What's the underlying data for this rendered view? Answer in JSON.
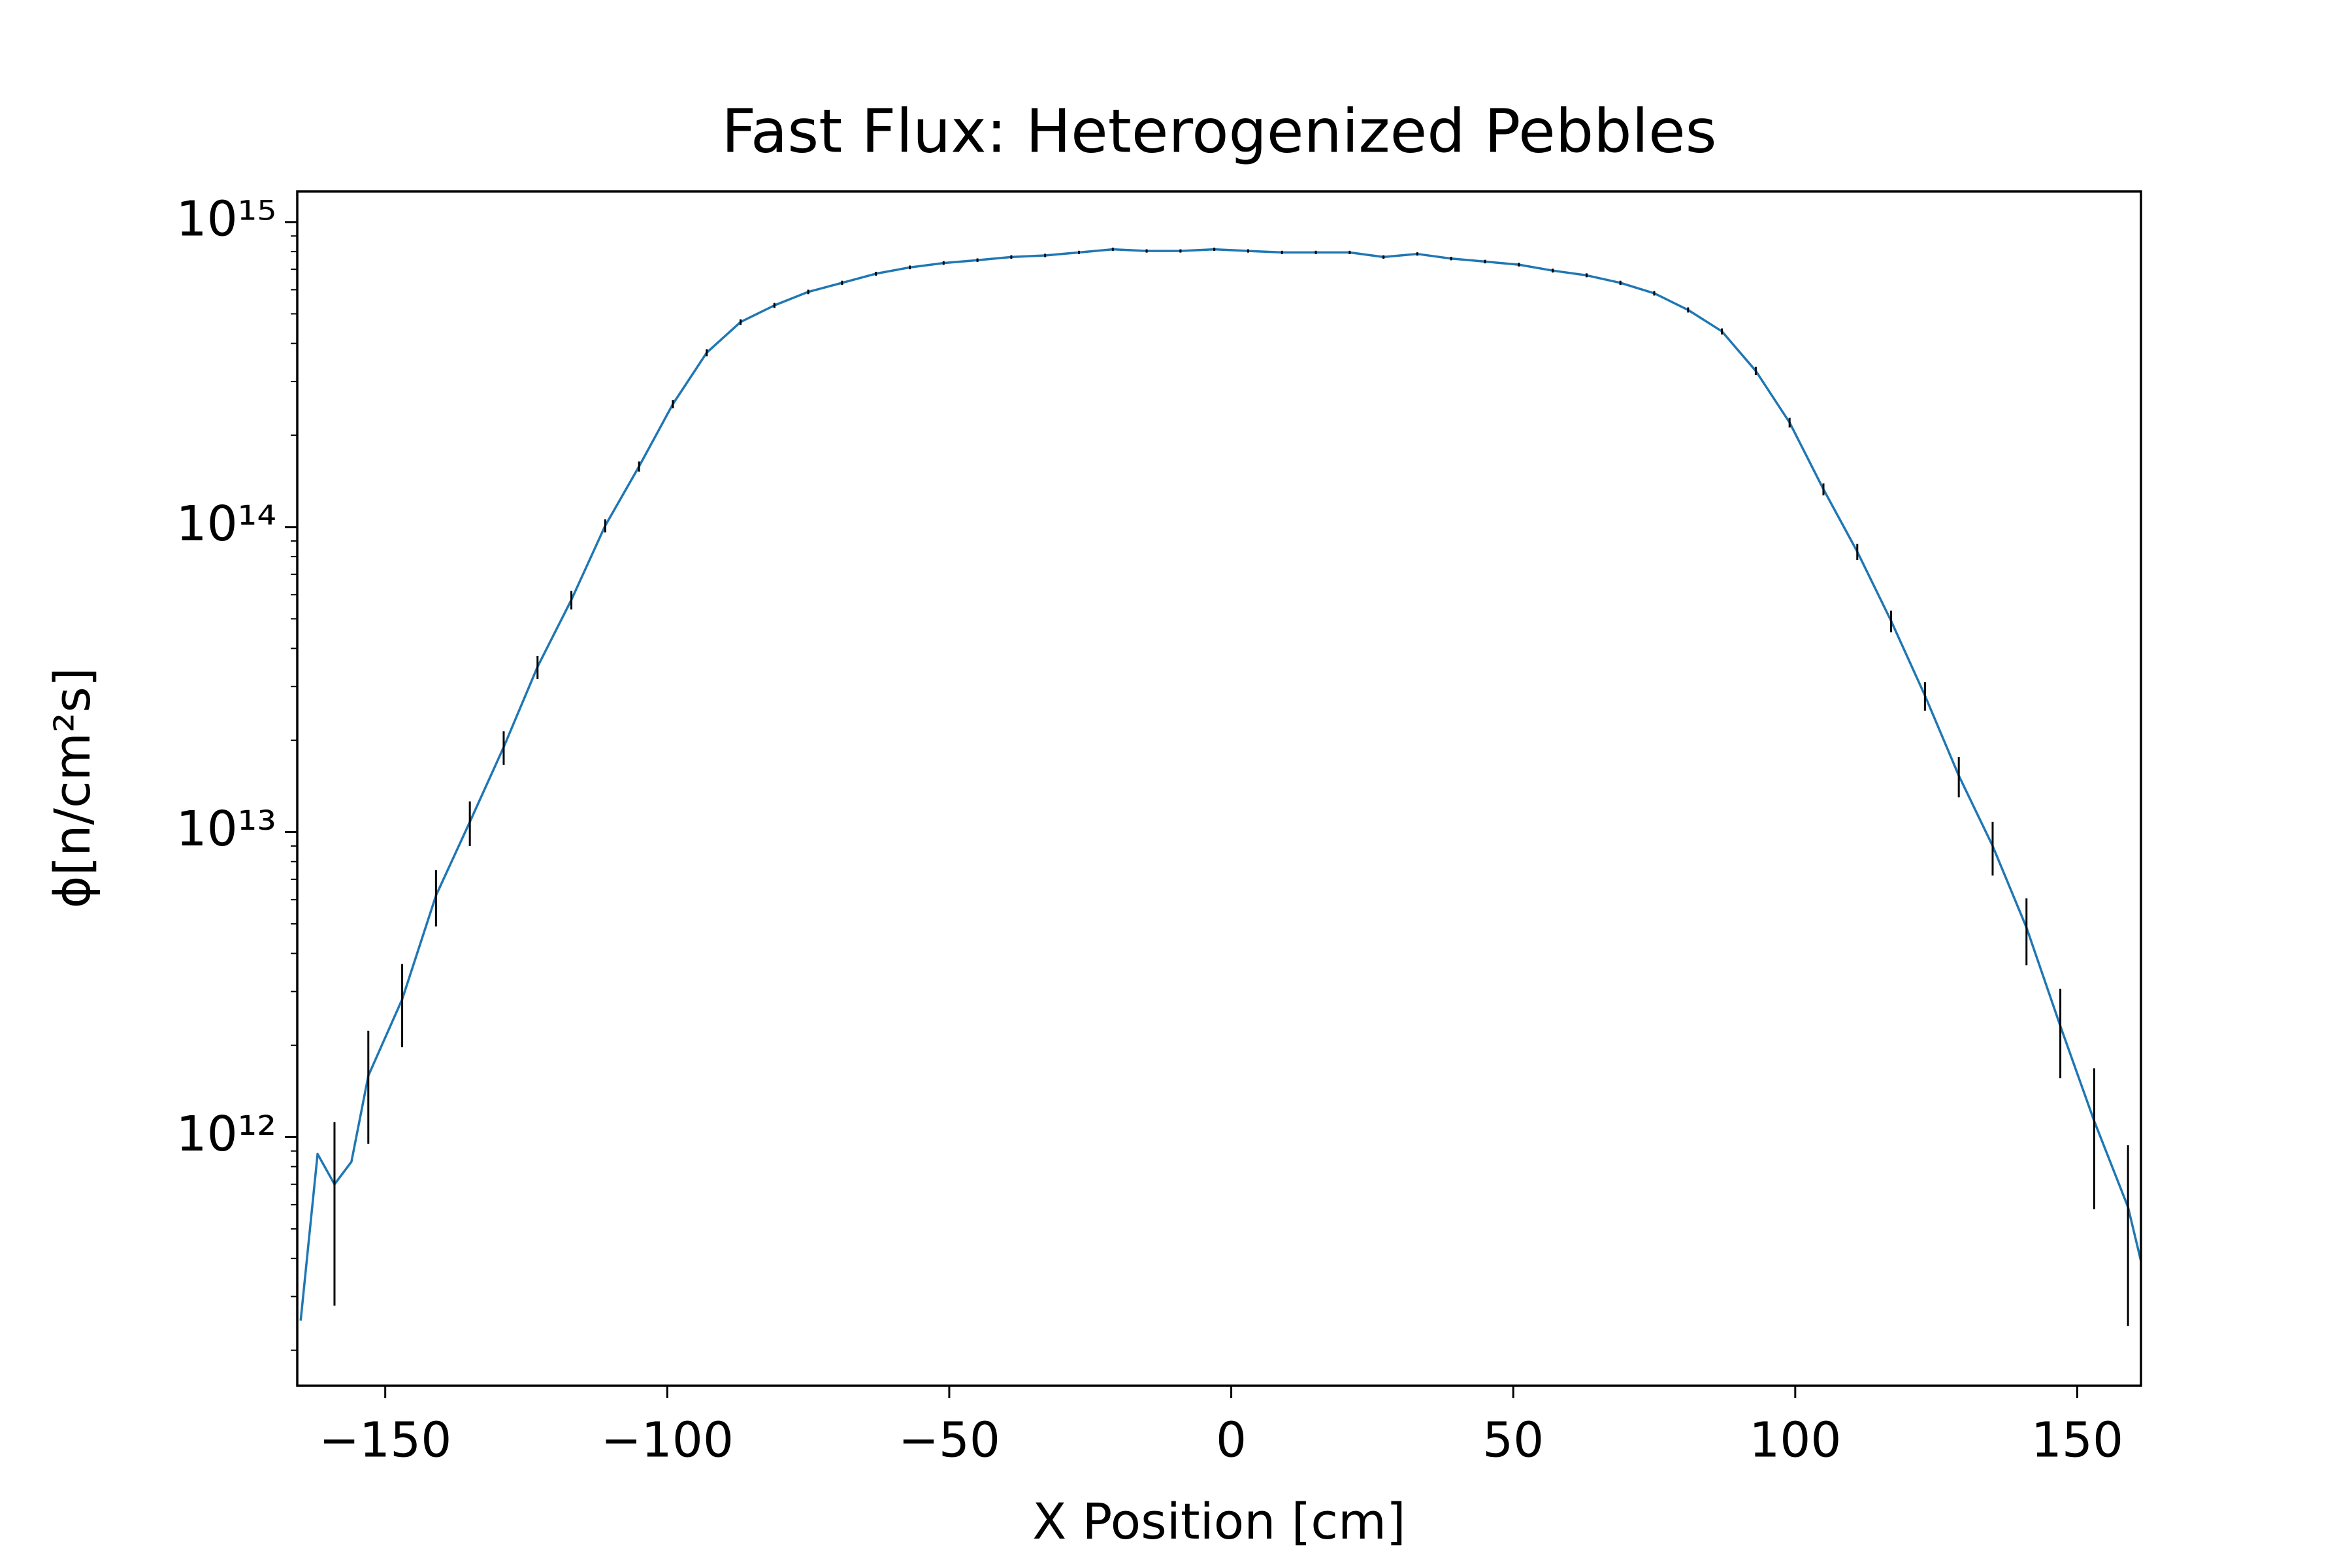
{
  "chart_data": {
    "type": "line",
    "title": "Fast Flux: Heterogenized Pebbles",
    "xlabel": "X Position [cm]",
    "ylabel": "ϕ[n/cm²s]",
    "log_y": true,
    "xlim": [
      -165.6,
      161.3
    ],
    "ylim": [
      153000000000.0,
      1260000000000000.0
    ],
    "xticks": [
      {
        "value": -150,
        "label": "−150"
      },
      {
        "value": -100,
        "label": "−100"
      },
      {
        "value": -50,
        "label": "−50"
      },
      0,
      50,
      100,
      150
    ],
    "yticks": [
      {
        "value": 1000000000000.0,
        "label": "10¹²"
      },
      {
        "value": 10000000000000.0,
        "label": "10¹³"
      },
      {
        "value": 100000000000000.0,
        "label": "10¹⁴"
      },
      {
        "value": 1000000000000000.0,
        "label": "10¹⁵"
      }
    ],
    "yminorticks": [
      200000000000.0,
      300000000000.0,
      400000000000.0,
      500000000000.0,
      600000000000.0,
      700000000000.0,
      800000000000.0,
      900000000000.0,
      2000000000000.0,
      3000000000000.0,
      4000000000000.0,
      5000000000000.0,
      6000000000000.0,
      7000000000000.0,
      8000000000000.0,
      9000000000000.0,
      20000000000000.0,
      30000000000000.0,
      40000000000000.0,
      50000000000000.0,
      60000000000000.0,
      70000000000000.0,
      80000000000000.0,
      90000000000000.0,
      200000000000000.0,
      300000000000000.0,
      400000000000000.0,
      500000000000000.0,
      600000000000000.0,
      700000000000000.0,
      800000000000000.0,
      900000000000000.0
    ],
    "error_color": "#000000",
    "x": [
      -165,
      -162,
      -159,
      -156,
      -153,
      -147,
      -141,
      -135,
      -129,
      -123,
      -117,
      -111,
      -105,
      -99,
      -93,
      -87,
      -81,
      -75,
      -69,
      -63,
      -57,
      -51,
      -45,
      -39,
      -33,
      -27,
      -21,
      -15,
      -9,
      -3,
      3,
      9,
      15,
      21,
      27,
      33,
      39,
      45,
      51,
      57,
      63,
      69,
      75,
      81,
      87,
      93,
      99,
      105,
      111,
      117,
      123,
      129,
      135,
      141,
      147,
      153,
      159,
      163,
      163.1
    ],
    "series": [
      {
        "color": "#1f77b4",
        "values": [
          250000000000.0,
          880000000000.0,
          700000000000.0,
          830000000000.0,
          1590000000000.0,
          2830000000000.0,
          6200000000000.0,
          10800000000000.0,
          19000000000000.0,
          34800000000000.0,
          57700000000000.0,
          101000000000000.0,
          158000000000000.0,
          253000000000000.0,
          373000000000000.0,
          470000000000000.0,
          533000000000000.0,
          590000000000000.0,
          632000000000000.0,
          677000000000000.0,
          710000000000000.0,
          734000000000000.0,
          750000000000000.0,
          768000000000000.0,
          777000000000000.0,
          795000000000000.0,
          814000000000000.0,
          804000000000000.0,
          804000000000000.0,
          814000000000000.0,
          804000000000000.0,
          795000000000000.0,
          795000000000000.0,
          795000000000000.0,
          768000000000000.0,
          786000000000000.0,
          759000000000000.0,
          742000000000000.0,
          725000000000000.0,
          693000000000000.0,
          669000000000000.0,
          632000000000000.0,
          584000000000000.0,
          515000000000000.0,
          438000000000000.0,
          325000000000000.0,
          220000000000000.0,
          133000000000000.0,
          83000000000000.0,
          49200000000000.0,
          28000000000000.0,
          15300000000000.0,
          9000000000000.0,
          4860000000000.0,
          2310000000000.0,
          1130000000000.0,
          590000000000.0,
          290000000000.0,
          100000000000.0
        ],
        "errors": [
          null,
          null,
          420000000000.0,
          null,
          640000000000.0,
          860000000000.0,
          1300000000000.0,
          1800000000000.0,
          2400000000000.0,
          3000000000000.0,
          4000000000000.0,
          5000000000000.0,
          6000000000000.0,
          8000000000000.0,
          10000000000000.0,
          10000000000000.0,
          10000000000000.0,
          10000000000000.0,
          10000000000000.0,
          10000000000000.0,
          10000000000000.0,
          10000000000000.0,
          10000000000000.0,
          10000000000000.0,
          10000000000000.0,
          10000000000000.0,
          10000000000000.0,
          10000000000000.0,
          10000000000000.0,
          10000000000000.0,
          10000000000000.0,
          10000000000000.0,
          10000000000000.0,
          10000000000000.0,
          10000000000000.0,
          10000000000000.0,
          10000000000000.0,
          10000000000000.0,
          10000000000000.0,
          10000000000000.0,
          10000000000000.0,
          10000000000000.0,
          10000000000000.0,
          10000000000000.0,
          10000000000000.0,
          10000000000000.0,
          8000000000000.0,
          6000000000000.0,
          5000000000000.0,
          4000000000000.0,
          3000000000000.0,
          2300000000000.0,
          1800000000000.0,
          1200000000000.0,
          750000000000.0,
          550000000000.0,
          350000000000.0,
          null,
          null
        ]
      }
    ]
  }
}
